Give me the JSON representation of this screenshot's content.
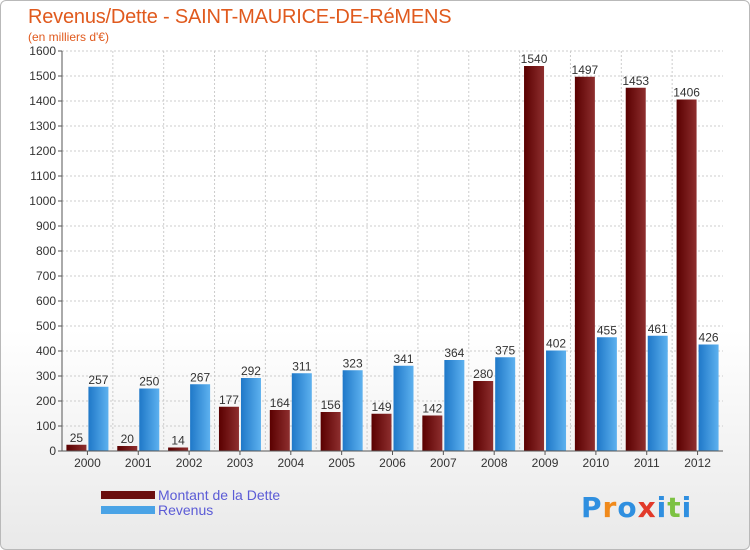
{
  "header": {
    "title": "Revenus/Dette - SAINT-MAURICE-DE-RéMENS",
    "subtitle": "(en milliers d'€)"
  },
  "legend": {
    "items": [
      {
        "label": "Montant de la Dette",
        "color": "#7a1212"
      },
      {
        "label": "Revenus",
        "color": "#4aa3e6"
      }
    ]
  },
  "logo": {
    "letters": [
      {
        "ch": "P",
        "color": "#2f8fe0"
      },
      {
        "ch": "r",
        "color": "#f08a1c"
      },
      {
        "ch": "o",
        "color": "#2f8fe0"
      },
      {
        "ch": "x",
        "color": "#e23a2a"
      },
      {
        "ch": "i",
        "color": "#2f8fe0"
      },
      {
        "ch": "t",
        "color": "#7cc242"
      },
      {
        "ch": "i",
        "color": "#2f8fe0"
      }
    ]
  },
  "colors": {
    "dette": "#7a1212",
    "revenus": "#4aa3e6",
    "title": "#e05a1e",
    "grid": "#cccccc"
  },
  "chart_data": {
    "type": "bar",
    "title": "Revenus/Dette - SAINT-MAURICE-DE-RéMENS",
    "subtitle": "(en milliers d'€)",
    "xlabel": "",
    "ylabel": "",
    "ylim": [
      0,
      1600
    ],
    "yticks": [
      0,
      100,
      200,
      300,
      400,
      500,
      600,
      700,
      800,
      900,
      1000,
      1100,
      1200,
      1300,
      1400,
      1500,
      1600
    ],
    "grid": true,
    "legend_position": "bottom-left",
    "categories": [
      "2000",
      "2001",
      "2002",
      "2003",
      "2004",
      "2005",
      "2006",
      "2007",
      "2008",
      "2009",
      "2010",
      "2011",
      "2012"
    ],
    "series": [
      {
        "name": "Montant de la Dette",
        "values": [
          25,
          20,
          14,
          177,
          164,
          156,
          149,
          142,
          280,
          1540,
          1497,
          1453,
          1406
        ]
      },
      {
        "name": "Revenus",
        "values": [
          257,
          250,
          267,
          292,
          311,
          323,
          341,
          364,
          375,
          402,
          455,
          461,
          426
        ]
      }
    ]
  }
}
